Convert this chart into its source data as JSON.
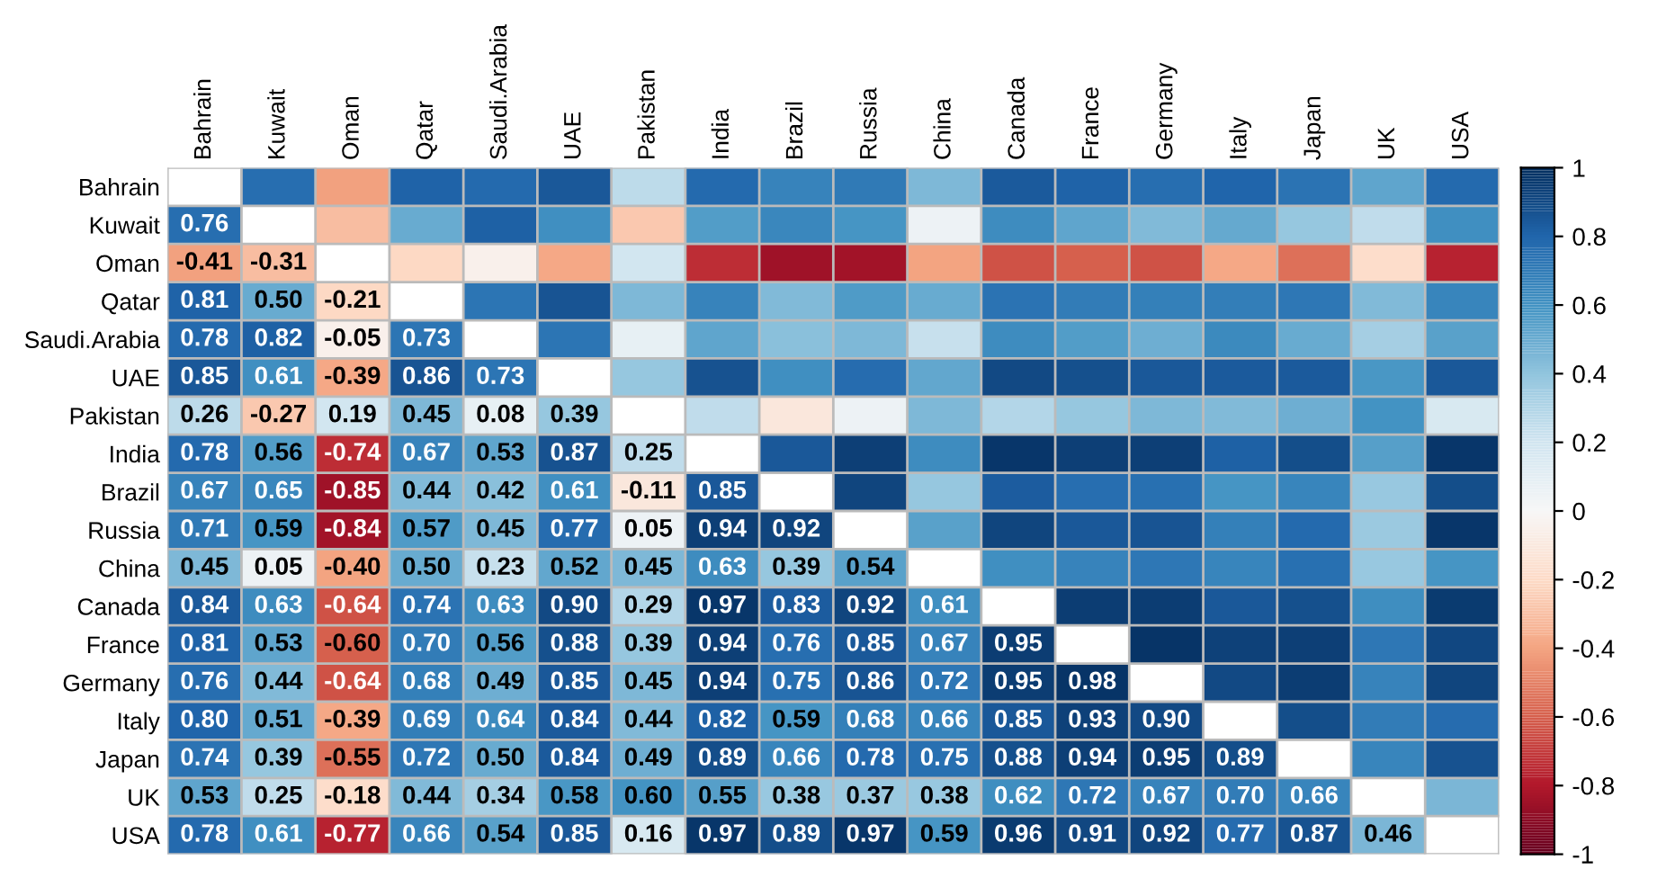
{
  "chart_data": {
    "type": "heatmap",
    "categories": [
      "Bahrain",
      "Kuwait",
      "Oman",
      "Qatar",
      "Saudi.Arabia",
      "UAE",
      "Pakistan",
      "India",
      "Brazil",
      "Russia",
      "China",
      "Canada",
      "France",
      "Germany",
      "Italy",
      "Japan",
      "UK",
      "USA"
    ],
    "y_categories": [
      "Bahrain",
      "Kuwait",
      "Oman",
      "Qatar",
      "Saudi.Arabia",
      "UAE",
      "Pakistan",
      "India",
      "Brazil",
      "Russia",
      "China",
      "Canada",
      "France",
      "Germany",
      "Italy",
      "Japan",
      "UK",
      "USA"
    ],
    "cells": [
      [
        null,
        0.76,
        -0.41,
        0.81,
        0.78,
        0.85,
        0.26,
        0.78,
        0.67,
        0.71,
        0.45,
        0.84,
        0.81,
        0.76,
        0.8,
        0.74,
        0.53,
        0.78
      ],
      [
        0.76,
        null,
        -0.31,
        0.5,
        0.82,
        0.61,
        -0.27,
        0.56,
        0.65,
        0.59,
        0.05,
        0.63,
        0.53,
        0.44,
        0.51,
        0.39,
        0.25,
        0.61
      ],
      [
        -0.41,
        -0.31,
        null,
        -0.21,
        -0.05,
        -0.39,
        0.19,
        -0.74,
        -0.85,
        -0.84,
        -0.4,
        -0.64,
        -0.6,
        -0.64,
        -0.39,
        -0.55,
        -0.18,
        -0.77
      ],
      [
        0.81,
        0.5,
        -0.21,
        null,
        0.73,
        0.86,
        0.45,
        0.67,
        0.44,
        0.57,
        0.5,
        0.74,
        0.7,
        0.68,
        0.69,
        0.72,
        0.44,
        0.66
      ],
      [
        0.78,
        0.82,
        -0.05,
        0.73,
        null,
        0.73,
        0.08,
        0.53,
        0.42,
        0.45,
        0.23,
        0.63,
        0.56,
        0.49,
        0.64,
        0.5,
        0.34,
        0.54
      ],
      [
        0.85,
        0.61,
        -0.39,
        0.86,
        0.73,
        null,
        0.39,
        0.87,
        0.61,
        0.77,
        0.52,
        0.9,
        0.88,
        0.85,
        0.84,
        0.84,
        0.58,
        0.85
      ],
      [
        0.26,
        -0.27,
        0.19,
        0.45,
        0.08,
        0.39,
        null,
        0.25,
        -0.11,
        0.05,
        0.45,
        0.29,
        0.39,
        0.45,
        0.44,
        0.49,
        0.6,
        0.16
      ],
      [
        0.78,
        0.56,
        -0.74,
        0.67,
        0.53,
        0.87,
        0.25,
        null,
        0.85,
        0.94,
        0.63,
        0.97,
        0.94,
        0.94,
        0.82,
        0.89,
        0.55,
        0.97
      ],
      [
        0.67,
        0.65,
        -0.85,
        0.44,
        0.42,
        0.61,
        -0.11,
        0.85,
        null,
        0.92,
        0.39,
        0.83,
        0.76,
        0.75,
        0.59,
        0.66,
        0.38,
        0.89
      ],
      [
        0.71,
        0.59,
        -0.84,
        0.57,
        0.45,
        0.77,
        0.05,
        0.94,
        0.92,
        null,
        0.54,
        0.92,
        0.85,
        0.86,
        0.68,
        0.78,
        0.37,
        0.97
      ],
      [
        0.45,
        0.05,
        -0.4,
        0.5,
        0.23,
        0.52,
        0.45,
        0.63,
        0.39,
        0.54,
        null,
        0.61,
        0.67,
        0.72,
        0.66,
        0.75,
        0.38,
        0.59
      ],
      [
        0.84,
        0.63,
        -0.64,
        0.74,
        0.63,
        0.9,
        0.29,
        0.97,
        0.83,
        0.92,
        0.61,
        null,
        0.95,
        0.95,
        0.85,
        0.88,
        0.62,
        0.96
      ],
      [
        0.81,
        0.53,
        -0.6,
        0.7,
        0.56,
        0.88,
        0.39,
        0.94,
        0.76,
        0.85,
        0.67,
        0.95,
        null,
        0.98,
        0.93,
        0.94,
        0.72,
        0.91
      ],
      [
        0.76,
        0.44,
        -0.64,
        0.68,
        0.49,
        0.85,
        0.45,
        0.94,
        0.75,
        0.86,
        0.72,
        0.95,
        0.98,
        null,
        0.9,
        0.95,
        0.67,
        0.92
      ],
      [
        0.8,
        0.51,
        -0.39,
        0.69,
        0.64,
        0.84,
        0.44,
        0.82,
        0.59,
        0.68,
        0.66,
        0.85,
        0.93,
        0.9,
        null,
        0.89,
        0.7,
        0.77
      ],
      [
        0.74,
        0.39,
        -0.55,
        0.72,
        0.5,
        0.84,
        0.49,
        0.89,
        0.66,
        0.78,
        0.75,
        0.88,
        0.94,
        0.95,
        0.89,
        null,
        0.66,
        0.87
      ],
      [
        0.53,
        0.25,
        -0.18,
        0.44,
        0.34,
        0.58,
        0.6,
        0.55,
        0.38,
        0.37,
        0.38,
        0.62,
        0.72,
        0.67,
        0.7,
        0.66,
        null,
        0.46
      ],
      [
        0.78,
        0.61,
        -0.77,
        0.66,
        0.54,
        0.85,
        0.16,
        0.97,
        0.89,
        0.97,
        0.59,
        0.96,
        0.91,
        0.92,
        0.77,
        0.87,
        0.46,
        null
      ]
    ],
    "cell_labels": [
      [
        null,
        null,
        null,
        null,
        null,
        null,
        null,
        null,
        null,
        null,
        null,
        null,
        null,
        null,
        null,
        null,
        null,
        null
      ],
      [
        "0.76",
        null,
        null,
        null,
        null,
        null,
        null,
        null,
        null,
        null,
        null,
        null,
        null,
        null,
        null,
        null,
        null,
        null
      ],
      [
        "-0.41",
        "-0.31",
        null,
        null,
        null,
        null,
        null,
        null,
        null,
        null,
        null,
        null,
        null,
        null,
        null,
        null,
        null,
        null
      ],
      [
        "0.81",
        "0.50",
        "-0.21",
        null,
        null,
        null,
        null,
        null,
        null,
        null,
        null,
        null,
        null,
        null,
        null,
        null,
        null,
        null
      ],
      [
        "0.78",
        "0.82",
        "-0.05",
        "0.73",
        null,
        null,
        null,
        null,
        null,
        null,
        null,
        null,
        null,
        null,
        null,
        null,
        null,
        null
      ],
      [
        "0.85",
        "0.61",
        "-0.39",
        "0.86",
        "0.73",
        null,
        null,
        null,
        null,
        null,
        null,
        null,
        null,
        null,
        null,
        null,
        null,
        null
      ],
      [
        "0.26",
        "-0.27",
        "0.19",
        "0.45",
        "0.08",
        "0.39",
        null,
        null,
        null,
        null,
        null,
        null,
        null,
        null,
        null,
        null,
        null,
        null
      ],
      [
        "0.78",
        "0.56",
        "-0.74",
        "0.67",
        "0.53",
        "0.87",
        "0.25",
        null,
        null,
        null,
        null,
        null,
        null,
        null,
        null,
        null,
        null,
        null
      ],
      [
        "0.67",
        "0.65",
        "-0.85",
        "0.44",
        "0.42",
        "0.61",
        "-0.11",
        "0.85",
        null,
        null,
        null,
        null,
        null,
        null,
        null,
        null,
        null,
        null
      ],
      [
        "0.71",
        "0.59",
        "-0.84",
        "0.57",
        "0.45",
        "0.77",
        "0.05",
        "0.94",
        "0.92",
        null,
        null,
        null,
        null,
        null,
        null,
        null,
        null,
        null
      ],
      [
        "0.45",
        "0.05",
        "-0.40",
        "0.50",
        "0.23",
        "0.52",
        "0.45",
        "0.63",
        "0.39",
        "0.54",
        null,
        null,
        null,
        null,
        null,
        null,
        null,
        null
      ],
      [
        "0.84",
        "0.63",
        "-0.64",
        "0.74",
        "0.63",
        "0.90",
        "0.29",
        "0.97",
        "0.83",
        "0.92",
        "0.61",
        null,
        null,
        null,
        null,
        null,
        null,
        null
      ],
      [
        "0.81",
        "0.53",
        "-0.60",
        "0.70",
        "0.56",
        "0.88",
        "0.39",
        "0.94",
        "0.76",
        "0.85",
        "0.67",
        "0.95",
        null,
        null,
        null,
        null,
        null,
        null
      ],
      [
        "0.76",
        "0.44",
        "-0.64",
        "0.68",
        "0.49",
        "0.85",
        "0.45",
        "0.94",
        "0.75",
        "0.86",
        "0.72",
        "0.95",
        "0.98",
        null,
        null,
        null,
        null,
        null
      ],
      [
        "0.80",
        "0.51",
        "-0.39",
        "0.69",
        "0.64",
        "0.84",
        "0.44",
        "0.82",
        "0.59",
        "0.68",
        "0.66",
        "0.85",
        "0.93",
        "0.90",
        null,
        null,
        null,
        null
      ],
      [
        "0.74",
        "0.39",
        "-0.55",
        "0.72",
        "0.50",
        "0.84",
        "0.49",
        "0.89",
        "0.66",
        "0.78",
        "0.75",
        "0.88",
        "0.94",
        "0.95",
        "0.89",
        null,
        null,
        null
      ],
      [
        "0.53",
        "0.25",
        "-0.18",
        "0.44",
        "0.34",
        "0.58",
        "0.60",
        "0.55",
        "0.38",
        "0.37",
        "0.38",
        "0.62",
        "0.72",
        "0.67",
        "0.70",
        "0.66",
        null,
        null
      ],
      [
        "0.78",
        "0.61",
        "-0.77",
        "0.66",
        "0.54",
        "0.85",
        "0.16",
        "0.97",
        "0.89",
        "0.97",
        "0.59",
        "0.96",
        "0.91",
        "0.92",
        "0.77",
        "0.87",
        "0.46",
        null
      ]
    ],
    "clim": [
      -1,
      1
    ],
    "cticks": [
      1,
      0.8,
      0.6,
      0.4,
      0.2,
      0,
      -0.2,
      -0.4,
      -0.6,
      -0.8,
      -1
    ],
    "grid": true
  }
}
